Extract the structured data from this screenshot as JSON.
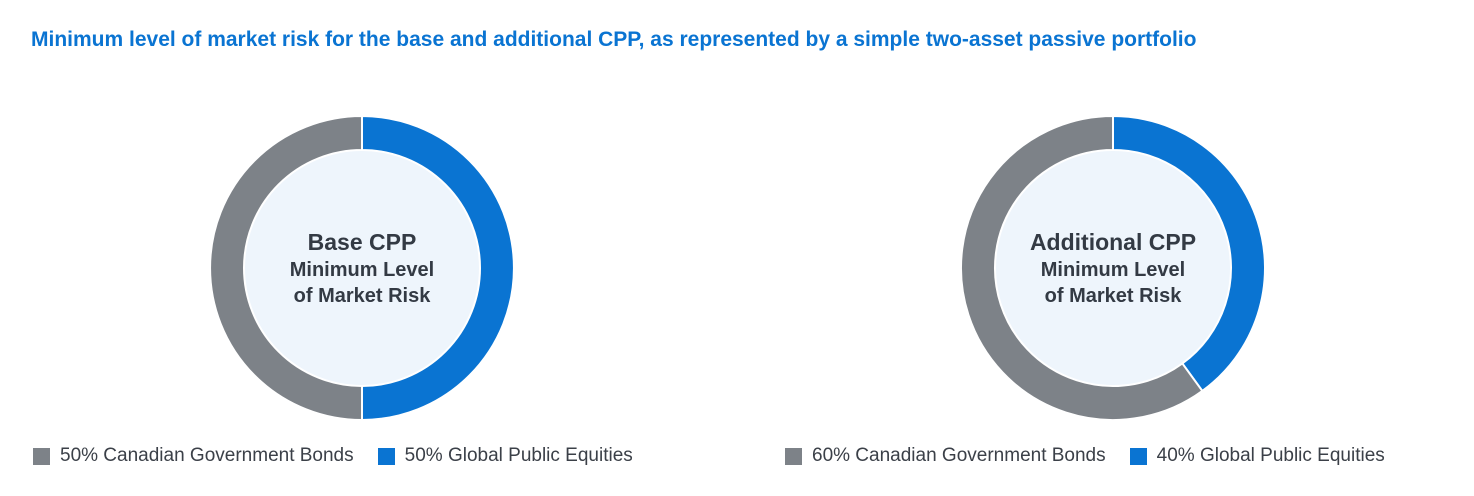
{
  "title": "Minimum level of market risk for the base and additional CPP, as represented by a simple two-asset passive portfolio",
  "colors": {
    "bonds": "#7d8288",
    "equities": "#0a74d2",
    "center": "#eef5fc"
  },
  "chart_data": [
    {
      "type": "pie",
      "center_label": {
        "line1": "Base CPP",
        "line2": "Minimum Level",
        "line3": "of Market Risk"
      },
      "categories": [
        "Canadian Government Bonds",
        "Global Public Equities"
      ],
      "values": [
        50,
        50
      ],
      "legend": [
        "50% Canadian Government Bonds",
        "50% Global Public Equities"
      ],
      "legend_position": "bottom"
    },
    {
      "type": "pie",
      "center_label": {
        "line1": "Additional CPP",
        "line2": "Minimum Level",
        "line3": "of Market Risk"
      },
      "categories": [
        "Canadian Government Bonds",
        "Global Public Equities"
      ],
      "values": [
        60,
        40
      ],
      "legend": [
        "60% Canadian Government Bonds",
        "40% Global Public Equities"
      ],
      "legend_position": "bottom"
    }
  ]
}
